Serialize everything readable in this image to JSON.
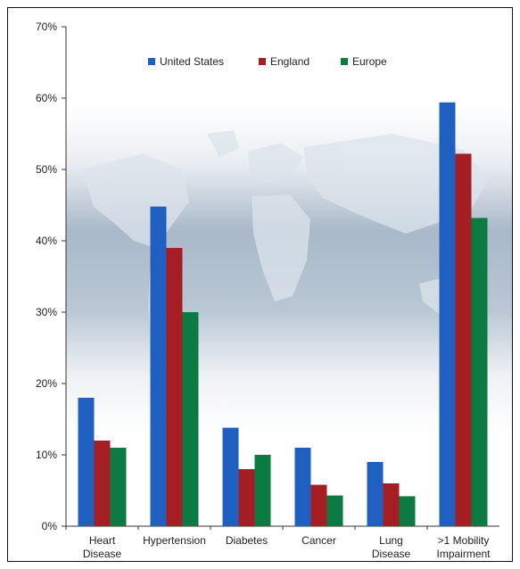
{
  "chart_data": {
    "type": "bar",
    "title": "",
    "xlabel": "",
    "ylabel": "",
    "ylim": [
      0,
      70
    ],
    "y_tick_values": [
      0,
      10,
      20,
      30,
      40,
      50,
      60,
      70
    ],
    "y_tick_labels": [
      "0%",
      "10%",
      "20%",
      "30%",
      "40%",
      "50%",
      "60%",
      "70%"
    ],
    "categories": [
      [
        "Heart",
        "Disease"
      ],
      [
        "Hypertension"
      ],
      [
        "Diabetes"
      ],
      [
        "Cancer"
      ],
      [
        "Lung",
        "Disease"
      ],
      [
        ">1 Mobility",
        "Impairment"
      ]
    ],
    "series": [
      {
        "name": "United States",
        "color": "#1f5fbf",
        "values": [
          18,
          44.8,
          13.8,
          11,
          9,
          59.4
        ]
      },
      {
        "name": "England",
        "color": "#a51e24",
        "values": [
          12,
          39,
          8,
          5.8,
          6,
          52.2
        ]
      },
      {
        "name": "Europe",
        "color": "#0b7a43",
        "values": [
          11,
          30,
          10,
          4.3,
          4.2,
          43.2
        ]
      }
    ],
    "legend_position": "top-center",
    "grid": false,
    "background": "faded world map"
  }
}
